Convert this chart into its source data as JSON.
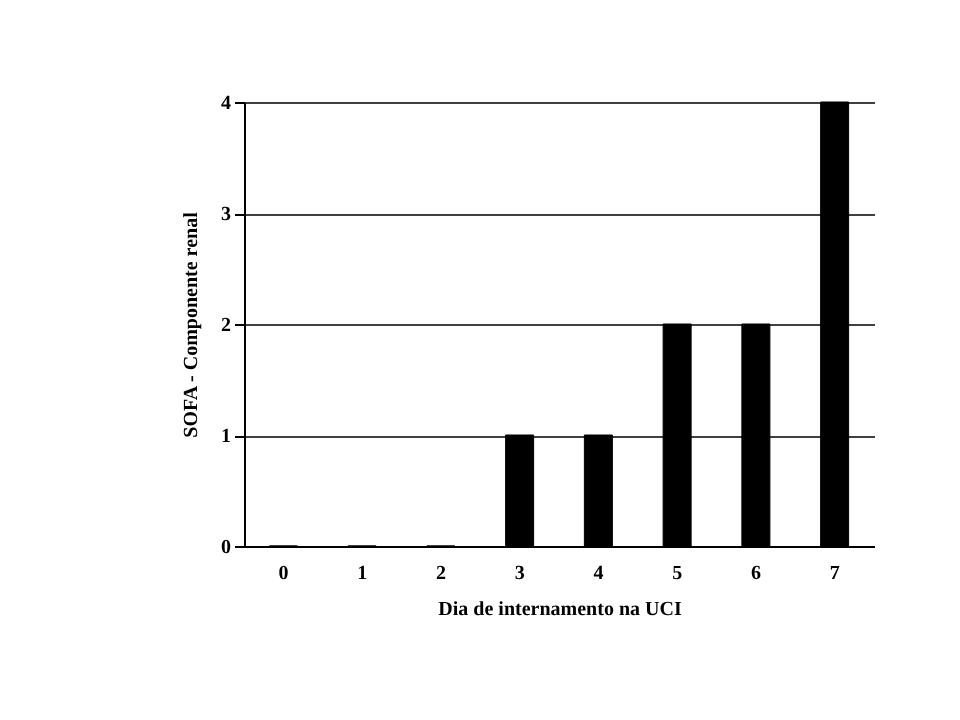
{
  "chart_data": {
    "type": "bar",
    "xlabel": "Dia de internamento na UCI",
    "ylabel": "SOFA - Componente renal",
    "categories": [
      "0",
      "1",
      "2",
      "3",
      "4",
      "5",
      "6",
      "7"
    ],
    "values": [
      0,
      0,
      0,
      1,
      1,
      2,
      2,
      4
    ],
    "color": "#000000",
    "ylim": [
      0,
      4
    ],
    "yticks": [
      0,
      1,
      2,
      3,
      4
    ],
    "grid": "y"
  }
}
